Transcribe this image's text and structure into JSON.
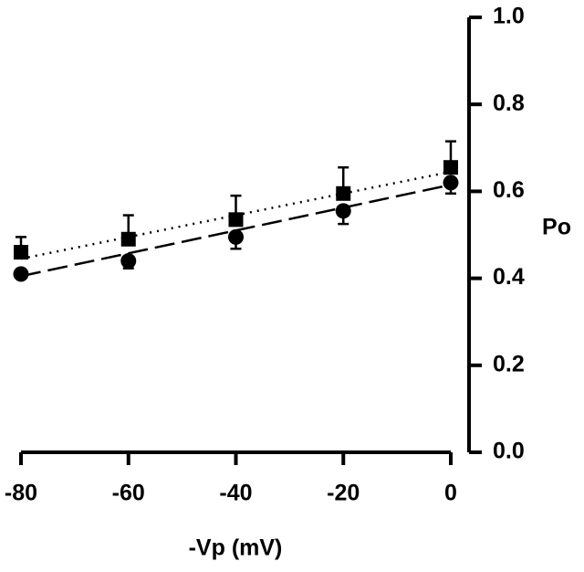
{
  "chart_data": {
    "type": "scatter",
    "x_label": "-Vp (mV)",
    "y_label": "Po",
    "x": [
      -80,
      -60,
      -40,
      -20,
      0
    ],
    "series": [
      {
        "marker": "square",
        "color": "#000000",
        "values": [
          0.46,
          0.49,
          0.535,
          0.595,
          0.655
        ],
        "errors": [
          0.035,
          0.055,
          0.055,
          0.06,
          0.06
        ],
        "error_direction": "up"
      },
      {
        "marker": "circle",
        "color": "#000000",
        "values": [
          0.41,
          0.44,
          0.495,
          0.555,
          0.62
        ],
        "errors": [
          0.01,
          0.017,
          0.027,
          0.03,
          0.025
        ],
        "error_direction": "down"
      }
    ],
    "fit_lines": [
      {
        "x": [
          -80,
          0
        ],
        "values": [
          0.445,
          0.645
        ],
        "style": "dotted"
      },
      {
        "x": [
          -80,
          0
        ],
        "values": [
          0.405,
          0.615
        ],
        "style": "dashed"
      }
    ],
    "xlim": [
      -80,
      0
    ],
    "xticks": [
      -80,
      -60,
      -40,
      -20,
      0
    ],
    "ylim": [
      0,
      1
    ],
    "yticks": [
      {
        "value": 0,
        "label": "0.0"
      },
      0.2,
      0.4,
      0.6,
      0.8,
      {
        "value": 1,
        "label": "1.0"
      }
    ],
    "y_axis_side": "right",
    "grid": false
  }
}
